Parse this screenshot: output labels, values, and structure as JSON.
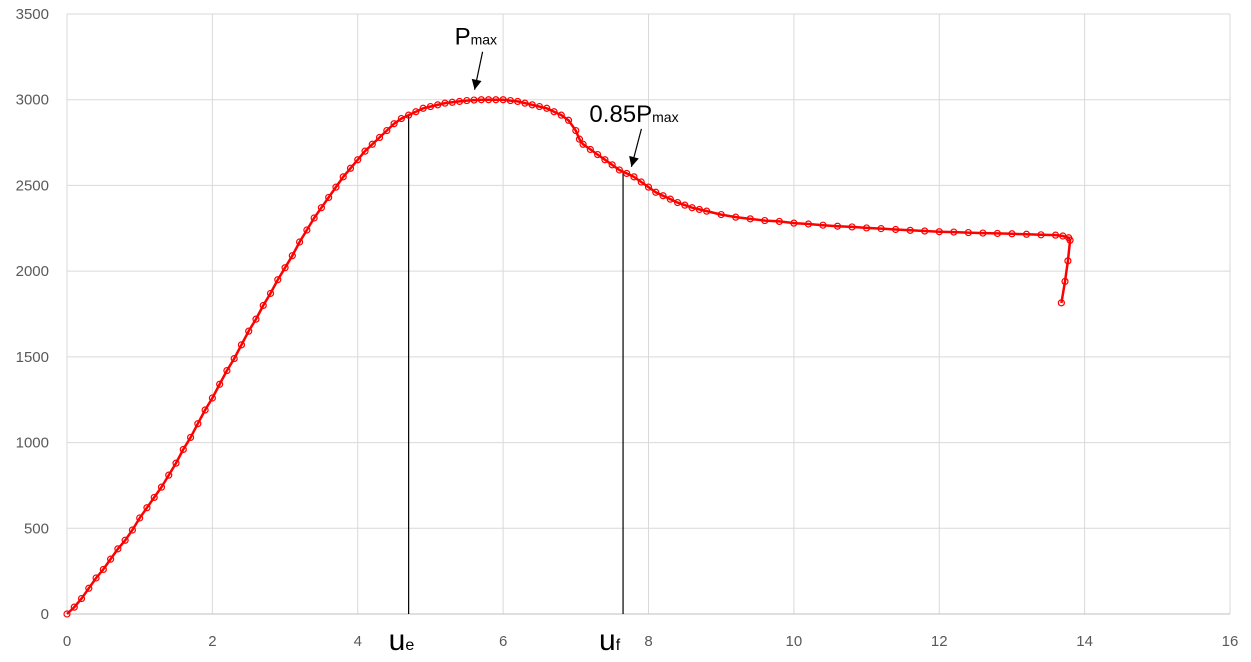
{
  "chart_data": {
    "type": "scatter",
    "title": "",
    "xlabel": "",
    "ylabel": "",
    "xlim": [
      0,
      16
    ],
    "ylim": [
      0,
      3500
    ],
    "x_ticks": [
      0,
      2,
      4,
      6,
      8,
      10,
      12,
      14,
      16
    ],
    "y_ticks": [
      0,
      500,
      1000,
      1500,
      2000,
      2500,
      3000,
      3500
    ],
    "grid": true,
    "legend": "none",
    "series": [
      {
        "color": "#ff0000",
        "marker": "circle-open",
        "line": true,
        "points": [
          [
            0.0,
            0
          ],
          [
            0.1,
            40
          ],
          [
            0.2,
            90
          ],
          [
            0.3,
            150
          ],
          [
            0.4,
            210
          ],
          [
            0.5,
            260
          ],
          [
            0.6,
            320
          ],
          [
            0.7,
            380
          ],
          [
            0.8,
            430
          ],
          [
            0.9,
            490
          ],
          [
            1.0,
            560
          ],
          [
            1.1,
            620
          ],
          [
            1.2,
            680
          ],
          [
            1.3,
            740
          ],
          [
            1.4,
            810
          ],
          [
            1.5,
            880
          ],
          [
            1.6,
            960
          ],
          [
            1.7,
            1030
          ],
          [
            1.8,
            1110
          ],
          [
            1.9,
            1190
          ],
          [
            2.0,
            1260
          ],
          [
            2.1,
            1340
          ],
          [
            2.2,
            1420
          ],
          [
            2.3,
            1490
          ],
          [
            2.4,
            1570
          ],
          [
            2.5,
            1650
          ],
          [
            2.6,
            1720
          ],
          [
            2.7,
            1800
          ],
          [
            2.8,
            1870
          ],
          [
            2.9,
            1950
          ],
          [
            3.0,
            2020
          ],
          [
            3.1,
            2090
          ],
          [
            3.2,
            2170
          ],
          [
            3.3,
            2240
          ],
          [
            3.4,
            2310
          ],
          [
            3.5,
            2370
          ],
          [
            3.6,
            2430
          ],
          [
            3.7,
            2490
          ],
          [
            3.8,
            2550
          ],
          [
            3.9,
            2600
          ],
          [
            4.0,
            2650
          ],
          [
            4.1,
            2700
          ],
          [
            4.2,
            2740
          ],
          [
            4.3,
            2780
          ],
          [
            4.4,
            2820
          ],
          [
            4.5,
            2860
          ],
          [
            4.6,
            2890
          ],
          [
            4.7,
            2910
          ],
          [
            4.8,
            2930
          ],
          [
            4.9,
            2950
          ],
          [
            5.0,
            2960
          ],
          [
            5.1,
            2970
          ],
          [
            5.2,
            2980
          ],
          [
            5.3,
            2985
          ],
          [
            5.4,
            2990
          ],
          [
            5.5,
            2995
          ],
          [
            5.6,
            2998
          ],
          [
            5.7,
            3000
          ],
          [
            5.8,
            3000
          ],
          [
            5.9,
            3000
          ],
          [
            6.0,
            3000
          ],
          [
            6.1,
            2995
          ],
          [
            6.2,
            2990
          ],
          [
            6.3,
            2980
          ],
          [
            6.4,
            2970
          ],
          [
            6.5,
            2960
          ],
          [
            6.6,
            2950
          ],
          [
            6.7,
            2930
          ],
          [
            6.8,
            2910
          ],
          [
            6.9,
            2880
          ],
          [
            7.0,
            2820
          ],
          [
            7.05,
            2770
          ],
          [
            7.1,
            2740
          ],
          [
            7.2,
            2710
          ],
          [
            7.3,
            2680
          ],
          [
            7.4,
            2650
          ],
          [
            7.5,
            2620
          ],
          [
            7.6,
            2590
          ],
          [
            7.7,
            2570
          ],
          [
            7.8,
            2550
          ],
          [
            7.9,
            2520
          ],
          [
            8.0,
            2490
          ],
          [
            8.1,
            2460
          ],
          [
            8.2,
            2440
          ],
          [
            8.3,
            2420
          ],
          [
            8.4,
            2400
          ],
          [
            8.5,
            2385
          ],
          [
            8.6,
            2370
          ],
          [
            8.7,
            2360
          ],
          [
            8.8,
            2350
          ],
          [
            9.0,
            2330
          ],
          [
            9.2,
            2315
          ],
          [
            9.4,
            2305
          ],
          [
            9.6,
            2295
          ],
          [
            9.8,
            2290
          ],
          [
            10.0,
            2280
          ],
          [
            10.2,
            2275
          ],
          [
            10.4,
            2268
          ],
          [
            10.6,
            2262
          ],
          [
            10.8,
            2258
          ],
          [
            11.0,
            2252
          ],
          [
            11.2,
            2248
          ],
          [
            11.4,
            2243
          ],
          [
            11.6,
            2238
          ],
          [
            11.8,
            2234
          ],
          [
            12.0,
            2230
          ],
          [
            12.2,
            2228
          ],
          [
            12.4,
            2225
          ],
          [
            12.6,
            2222
          ],
          [
            12.8,
            2220
          ],
          [
            13.0,
            2218
          ],
          [
            13.2,
            2215
          ],
          [
            13.4,
            2212
          ],
          [
            13.6,
            2210
          ],
          [
            13.7,
            2205
          ],
          [
            13.78,
            2195
          ],
          [
            13.8,
            2180
          ],
          [
            13.77,
            2060
          ],
          [
            13.73,
            1940
          ],
          [
            13.68,
            1815
          ]
        ]
      }
    ],
    "annotations": {
      "pmax": {
        "main": "P",
        "sub": "max",
        "x": 5.8,
        "y": 3000
      },
      "p085": {
        "main": "0.85P",
        "sub": "max",
        "x": 7.6,
        "y": 2550
      },
      "ue": {
        "main": "u",
        "sub": "e",
        "x": 4.7
      },
      "uf": {
        "main": "u",
        "sub": "f",
        "x": 7.65
      }
    }
  }
}
